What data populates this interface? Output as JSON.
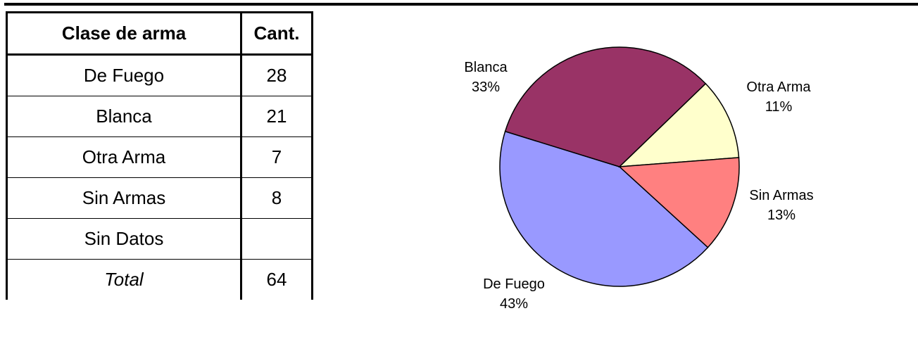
{
  "table": {
    "header": [
      "Clase de arma",
      "Cant."
    ],
    "rows": [
      [
        "De Fuego",
        28
      ],
      [
        "Blanca",
        21
      ],
      [
        "Otra Arma",
        7
      ],
      [
        "Sin Armas",
        8
      ],
      [
        "Sin Datos"
      ],
      [
        "Total",
        64
      ]
    ]
  },
  "chart_data": {
    "type": "pie",
    "categories": [
      "De Fuego",
      "Blanca",
      "Otra Arma",
      "Sin Armas"
    ],
    "values": [
      43,
      33,
      11,
      13
    ],
    "value_labels": [
      "43%",
      "33%",
      "11%",
      "13%"
    ],
    "colors": [
      "#9999ff",
      "#993366",
      "#ffffcc",
      "#ff8080"
    ]
  }
}
